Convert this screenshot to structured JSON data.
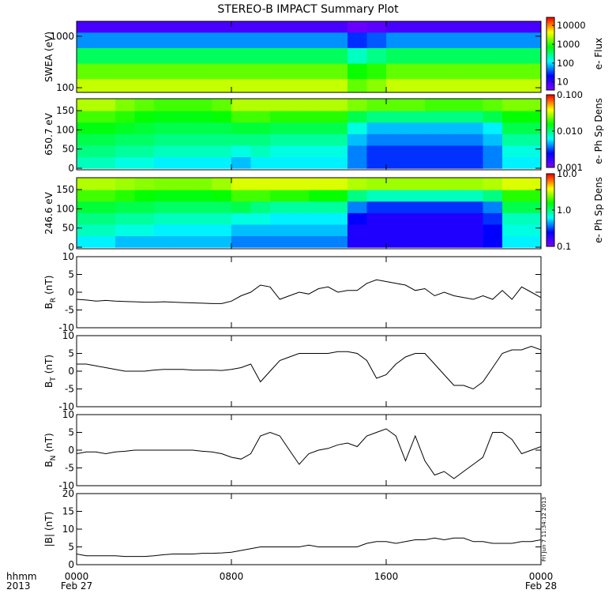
{
  "title": "STEREO-B IMPACT Summary Plot",
  "xlim": [
    0,
    24
  ],
  "xticks": [
    {
      "value": 0,
      "label": "0000"
    },
    {
      "value": 8,
      "label": "0800"
    },
    {
      "value": 16,
      "label": "1600"
    },
    {
      "value": 24,
      "label": "0000"
    }
  ],
  "x_label_lines": [
    "hhmm",
    "2013"
  ],
  "date_labels": [
    {
      "value": 0,
      "label": "Feb 27"
    },
    {
      "value": 24,
      "label": "Feb 28"
    }
  ],
  "timestamp": "Fri Jun  7 11:34:12 2013",
  "colorscale": [
    "#7f00ff",
    "#0000ff",
    "#00ffff",
    "#00ff00",
    "#ffff00",
    "#ff0000"
  ],
  "chart_data": [
    {
      "type": "heatmap",
      "ylabel": {
        "main": "SWEA (eV)"
      },
      "ylog": true,
      "ylim": [
        81,
        1950
      ],
      "yticks": [
        100,
        1000
      ],
      "yedges": [
        81,
        150,
        300,
        600,
        1200,
        1950
      ],
      "z": [
        [
          3000,
          3000,
          3000,
          3000,
          3000,
          3000,
          3000,
          3000,
          3000,
          3000,
          3000,
          3000,
          3000,
          3000,
          1500,
          2000,
          3000,
          3000,
          3000,
          3000,
          3000,
          3000,
          3000,
          3000
        ],
        [
          1500,
          1500,
          1500,
          1500,
          1500,
          1500,
          1500,
          1500,
          1500,
          1500,
          1500,
          1500,
          1500,
          1500,
          800,
          1000,
          1500,
          1500,
          1500,
          1500,
          1500,
          1500,
          1500,
          1500
        ],
        [
          400,
          400,
          400,
          400,
          400,
          400,
          400,
          400,
          400,
          400,
          400,
          400,
          400,
          400,
          200,
          300,
          400,
          400,
          400,
          400,
          400,
          400,
          400,
          400
        ],
        [
          60,
          60,
          60,
          60,
          60,
          60,
          60,
          60,
          60,
          60,
          60,
          60,
          60,
          60,
          30,
          40,
          60,
          60,
          60,
          60,
          60,
          60,
          60,
          60
        ],
        [
          8,
          8,
          8,
          8,
          8,
          8,
          8,
          8,
          8,
          8,
          8,
          8,
          8,
          8,
          5,
          6,
          8,
          8,
          8,
          8,
          8,
          8,
          8,
          8
        ]
      ],
      "colorbar": {
        "label": "e- Flux",
        "log": true,
        "lim": [
          3.7,
          26600
        ],
        "ticks": [
          10,
          100,
          1000,
          10000
        ]
      }
    },
    {
      "type": "heatmap",
      "ylabel": {
        "main": "650.7 eV"
      },
      "ylog": false,
      "ylim": [
        -4,
        181
      ],
      "yticks": [
        0,
        50,
        100,
        150
      ],
      "yedges": [
        0,
        30,
        60,
        90,
        120,
        150,
        180
      ],
      "z": [
        [
          0.008,
          0.008,
          0.007,
          0.007,
          0.006,
          0.006,
          0.006,
          0.006,
          0.005,
          0.006,
          0.006,
          0.006,
          0.006,
          0.006,
          0.004,
          0.003,
          0.003,
          0.003,
          0.003,
          0.003,
          0.003,
          0.004,
          0.006,
          0.006
        ],
        [
          0.01,
          0.01,
          0.009,
          0.009,
          0.008,
          0.008,
          0.008,
          0.008,
          0.007,
          0.008,
          0.007,
          0.007,
          0.007,
          0.007,
          0.004,
          0.003,
          0.003,
          0.003,
          0.003,
          0.003,
          0.003,
          0.004,
          0.007,
          0.007
        ],
        [
          0.012,
          0.012,
          0.011,
          0.011,
          0.01,
          0.01,
          0.01,
          0.01,
          0.01,
          0.01,
          0.009,
          0.009,
          0.009,
          0.009,
          0.005,
          0.004,
          0.004,
          0.004,
          0.004,
          0.004,
          0.004,
          0.005,
          0.009,
          0.009
        ],
        [
          0.015,
          0.015,
          0.014,
          0.013,
          0.012,
          0.012,
          0.012,
          0.012,
          0.013,
          0.013,
          0.012,
          0.012,
          0.012,
          0.012,
          0.007,
          0.005,
          0.005,
          0.005,
          0.005,
          0.005,
          0.005,
          0.006,
          0.012,
          0.012
        ],
        [
          0.02,
          0.02,
          0.018,
          0.016,
          0.015,
          0.015,
          0.015,
          0.016,
          0.02,
          0.02,
          0.018,
          0.018,
          0.018,
          0.018,
          0.012,
          0.01,
          0.01,
          0.01,
          0.01,
          0.01,
          0.01,
          0.012,
          0.016,
          0.016
        ],
        [
          0.03,
          0.03,
          0.025,
          0.022,
          0.02,
          0.02,
          0.02,
          0.022,
          0.03,
          0.03,
          0.03,
          0.03,
          0.03,
          0.03,
          0.025,
          0.022,
          0.022,
          0.022,
          0.02,
          0.02,
          0.02,
          0.022,
          0.025,
          0.025
        ]
      ],
      "colorbar": {
        "label": "e- Ph Sp Dens",
        "log": true,
        "lim": [
          0.001,
          0.1
        ],
        "ticks": [
          {
            "value": 0.001,
            "label": "0.001"
          },
          {
            "value": 0.01,
            "label": "0.010"
          },
          {
            "value": 0.1,
            "label": "0.100"
          }
        ]
      }
    },
    {
      "type": "heatmap",
      "ylabel": {
        "main": "246.6 eV"
      },
      "ylog": false,
      "ylim": [
        -4,
        181
      ],
      "yticks": [
        0,
        50,
        100,
        150
      ],
      "yedges": [
        0,
        30,
        60,
        90,
        120,
        150,
        180
      ],
      "z": [
        [
          0.6,
          0.6,
          0.5,
          0.5,
          0.5,
          0.5,
          0.5,
          0.5,
          0.4,
          0.4,
          0.4,
          0.4,
          0.4,
          0.4,
          0.2,
          0.2,
          0.2,
          0.2,
          0.2,
          0.2,
          0.2,
          0.25,
          0.6,
          0.6
        ],
        [
          0.8,
          0.8,
          0.7,
          0.7,
          0.6,
          0.6,
          0.6,
          0.6,
          0.5,
          0.5,
          0.5,
          0.5,
          0.5,
          0.5,
          0.2,
          0.2,
          0.2,
          0.2,
          0.2,
          0.2,
          0.2,
          0.25,
          0.7,
          0.7
        ],
        [
          1,
          1,
          0.9,
          0.9,
          0.8,
          0.8,
          0.8,
          0.8,
          0.7,
          0.7,
          0.6,
          0.6,
          0.6,
          0.6,
          0.25,
          0.2,
          0.2,
          0.2,
          0.2,
          0.2,
          0.2,
          0.3,
          0.8,
          0.8
        ],
        [
          1.3,
          1.3,
          1.2,
          1.2,
          1.1,
          1.1,
          1.1,
          1.1,
          1.2,
          1,
          0.9,
          0.9,
          0.9,
          0.9,
          0.4,
          0.3,
          0.3,
          0.3,
          0.3,
          0.3,
          0.3,
          0.4,
          1.2,
          1.2
        ],
        [
          2,
          2,
          1.8,
          1.6,
          1.5,
          1.5,
          1.5,
          1.6,
          2,
          2,
          1.8,
          1.8,
          1.6,
          1.6,
          1,
          0.8,
          0.8,
          0.8,
          0.8,
          0.8,
          0.8,
          1,
          1.8,
          1.8
        ],
        [
          3,
          3,
          2.8,
          2.6,
          2.5,
          2.5,
          2.5,
          2.8,
          3.5,
          3.5,
          3.5,
          3.5,
          3.5,
          3.5,
          3,
          2.8,
          2.8,
          2.8,
          2.8,
          2.8,
          2.8,
          3,
          3.5,
          3.5
        ]
      ],
      "colorbar": {
        "label": "e- Ph Sp Dens",
        "log": true,
        "lim": [
          0.1,
          10
        ],
        "ticks": [
          0.1,
          {
            "value": 1,
            "label": "1.0"
          },
          {
            "value": 10,
            "label": "10.0"
          }
        ]
      }
    },
    {
      "type": "line",
      "ylabel": {
        "main": "B",
        "sub": "R",
        "unit": "(nT)"
      },
      "color": "#000000",
      "ylim": [
        -10,
        10
      ],
      "yticks": [
        -10,
        -5,
        0,
        5,
        10
      ],
      "x": [
        0,
        0.5,
        1,
        1.5,
        2,
        2.5,
        3,
        3.5,
        4,
        4.5,
        5,
        5.5,
        6,
        6.5,
        7,
        7.5,
        8,
        8.5,
        9,
        9.5,
        10,
        10.5,
        11,
        11.5,
        12,
        12.5,
        13,
        13.5,
        14,
        14.5,
        15,
        15.5,
        16,
        16.5,
        17,
        17.5,
        18,
        18.5,
        19,
        19.5,
        20,
        20.5,
        21,
        21.5,
        22,
        22.5,
        23,
        23.5,
        24
      ],
      "values": [
        -2,
        -2.2,
        -2.5,
        -2.3,
        -2.5,
        -2.6,
        -2.7,
        -2.8,
        -2.8,
        -2.7,
        -2.8,
        -2.9,
        -3,
        -3.1,
        -3.2,
        -3.2,
        -2.5,
        -1,
        0,
        2,
        1.5,
        -2,
        -1,
        0,
        -0.5,
        1,
        1.5,
        0,
        0.5,
        0.5,
        2.5,
        3.5,
        3,
        2.5,
        2,
        0.5,
        1,
        -1,
        0,
        -1,
        -1.5,
        -2,
        -1,
        -2,
        0.5,
        -2,
        1.5,
        0,
        -1.5
      ]
    },
    {
      "type": "line",
      "ylabel": {
        "main": "B",
        "sub": "T",
        "unit": "(nT)"
      },
      "color": "#000000",
      "ylim": [
        -10,
        10
      ],
      "yticks": [
        -10,
        -5,
        0,
        5,
        10
      ],
      "x": [
        0,
        0.5,
        1,
        1.5,
        2,
        2.5,
        3,
        3.5,
        4,
        4.5,
        5,
        5.5,
        6,
        6.5,
        7,
        7.5,
        8,
        8.5,
        9,
        9.5,
        10,
        10.5,
        11,
        11.5,
        12,
        12.5,
        13,
        13.5,
        14,
        14.5,
        15,
        15.5,
        16,
        16.5,
        17,
        17.5,
        18,
        18.5,
        19,
        19.5,
        20,
        20.5,
        21,
        21.5,
        22,
        22.5,
        23,
        23.5,
        24
      ],
      "values": [
        2,
        2,
        1.5,
        1,
        0.5,
        0,
        0,
        0,
        0.3,
        0.5,
        0.5,
        0.5,
        0.3,
        0.3,
        0.3,
        0.2,
        0.5,
        1,
        2,
        -3,
        0,
        3,
        4,
        5,
        5,
        5,
        5,
        5.5,
        5.5,
        5,
        3,
        -2,
        -1,
        2,
        4,
        5,
        5,
        2,
        -1,
        -4,
        -4,
        -5,
        -3,
        1,
        5,
        6,
        6,
        7,
        6
      ]
    },
    {
      "type": "line",
      "ylabel": {
        "main": "B",
        "sub": "N",
        "unit": "(nT)"
      },
      "color": "#000000",
      "ylim": [
        -10,
        10
      ],
      "yticks": [
        -10,
        -5,
        0,
        5,
        10
      ],
      "x": [
        0,
        0.5,
        1,
        1.5,
        2,
        2.5,
        3,
        3.5,
        4,
        4.5,
        5,
        5.5,
        6,
        6.5,
        7,
        7.5,
        8,
        8.5,
        9,
        9.5,
        10,
        10.5,
        11,
        11.5,
        12,
        12.5,
        13,
        13.5,
        14,
        14.5,
        15,
        15.5,
        16,
        16.5,
        17,
        17.5,
        18,
        18.5,
        19,
        19.5,
        20,
        20.5,
        21,
        21.5,
        22,
        22.5,
        23,
        23.5,
        24
      ],
      "values": [
        -1,
        -0.5,
        -0.5,
        -1,
        -0.5,
        -0.3,
        0,
        0,
        0,
        0,
        0,
        0,
        0,
        -0.3,
        -0.5,
        -1,
        -2,
        -2.5,
        -1,
        4,
        5,
        4,
        0,
        -4,
        -1,
        0,
        0.5,
        1.5,
        2,
        1,
        4,
        5,
        6,
        4,
        -3,
        4,
        -3,
        -7,
        -6,
        -8,
        -6,
        -4,
        -2,
        5,
        5,
        3,
        -1,
        0,
        1
      ]
    },
    {
      "type": "line",
      "ylabel": {
        "main": "|B|",
        "unit": "(nT)"
      },
      "color": "#000000",
      "ylim": [
        0,
        20
      ],
      "yticks": [
        0,
        5,
        10,
        15,
        20
      ],
      "x": [
        0,
        0.5,
        1,
        1.5,
        2,
        2.5,
        3,
        3.5,
        4,
        4.5,
        5,
        5.5,
        6,
        6.5,
        7,
        7.5,
        8,
        8.5,
        9,
        9.5,
        10,
        10.5,
        11,
        11.5,
        12,
        12.5,
        13,
        13.5,
        14,
        14.5,
        15,
        15.5,
        16,
        16.5,
        17,
        17.5,
        18,
        18.5,
        19,
        19.5,
        20,
        20.5,
        21,
        21.5,
        22,
        22.5,
        23,
        23.5,
        24
      ],
      "values": [
        3,
        2.5,
        2.5,
        2.5,
        2.5,
        2.3,
        2.3,
        2.3,
        2.5,
        2.8,
        3,
        3,
        3,
        3.2,
        3.2,
        3.3,
        3.5,
        4,
        4.5,
        5,
        5,
        5,
        5,
        5,
        5.5,
        5,
        5,
        5,
        5,
        5,
        6,
        6.5,
        6.5,
        6,
        6.5,
        7,
        7,
        7.5,
        7,
        7.5,
        7.5,
        6.5,
        6.5,
        6,
        6,
        6,
        6.5,
        6.5,
        7
      ]
    }
  ]
}
